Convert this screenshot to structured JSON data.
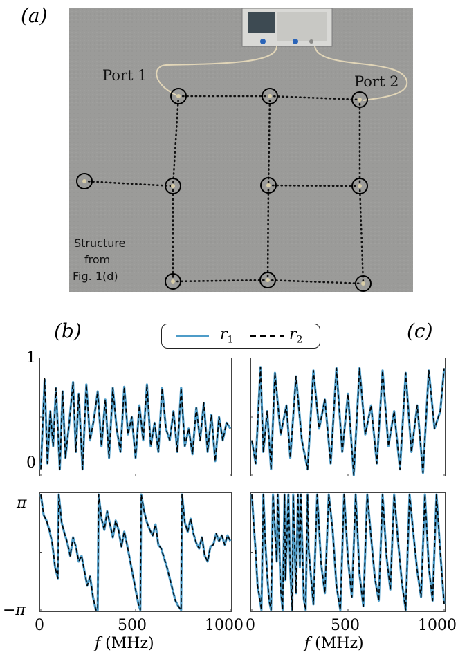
{
  "figure": {
    "panel_labels": {
      "a": "(a)",
      "b": "(b)",
      "c": "(c)"
    },
    "photo": {
      "port1_label": "Port 1",
      "port2_label": "Port 2",
      "structure_note": [
        "Structure",
        "from",
        "Fig. 1(d)"
      ]
    },
    "legend": {
      "r1": "r",
      "r1_sub": "1",
      "r2": "r",
      "r2_sub": "2"
    },
    "y_ticks_top": {
      "max": "1",
      "min": "0"
    },
    "y_ticks_bottom": {
      "max": "π",
      "min": "−π"
    },
    "x_ticks_b": [
      "0",
      "500",
      "1000"
    ],
    "x_ticks_c": [
      "0",
      "500",
      "1000"
    ],
    "xlabel_var": "f",
    "xlabel_unit": "(MHz)",
    "colors": {
      "r1": "#4e9cc8",
      "r2": "#000000",
      "photo_floor": "#9c9c9a",
      "axis": "#444444"
    }
  },
  "chart_data": [
    {
      "panel": "b-top",
      "type": "line",
      "quantity": "amplitude",
      "xlim": [
        0,
        1000
      ],
      "ylim": [
        0,
        1
      ],
      "series": [
        {
          "name": "r1",
          "x": [
            0,
            20,
            35,
            50,
            65,
            80,
            100,
            115,
            130,
            150,
            170,
            185,
            200,
            220,
            240,
            260,
            280,
            300,
            320,
            340,
            360,
            380,
            400,
            420,
            440,
            460,
            480,
            500,
            520,
            540,
            560,
            580,
            600,
            620,
            640,
            660,
            680,
            700,
            720,
            740,
            760,
            780,
            800,
            820,
            840,
            860,
            880,
            900,
            920,
            940,
            960,
            980,
            1000
          ],
          "y": [
            0.05,
            0.82,
            0.1,
            0.55,
            0.25,
            0.75,
            0.05,
            0.72,
            0.15,
            0.45,
            0.8,
            0.2,
            0.7,
            0.05,
            0.78,
            0.3,
            0.48,
            0.72,
            0.25,
            0.65,
            0.15,
            0.75,
            0.4,
            0.2,
            0.76,
            0.35,
            0.5,
            0.15,
            0.6,
            0.3,
            0.78,
            0.25,
            0.45,
            0.2,
            0.75,
            0.4,
            0.3,
            0.55,
            0.2,
            0.75,
            0.25,
            0.4,
            0.18,
            0.58,
            0.3,
            0.62,
            0.2,
            0.52,
            0.12,
            0.5,
            0.3,
            0.45,
            0.4
          ]
        },
        {
          "name": "r2",
          "x": [
            0,
            20,
            35,
            50,
            65,
            80,
            100,
            115,
            130,
            150,
            170,
            185,
            200,
            220,
            240,
            260,
            280,
            300,
            320,
            340,
            360,
            380,
            400,
            420,
            440,
            460,
            480,
            500,
            520,
            540,
            560,
            580,
            600,
            620,
            640,
            660,
            680,
            700,
            720,
            740,
            760,
            780,
            800,
            820,
            840,
            860,
            880,
            900,
            920,
            940,
            960,
            980,
            1000
          ],
          "y": [
            0.05,
            0.83,
            0.1,
            0.55,
            0.25,
            0.75,
            0.05,
            0.72,
            0.15,
            0.45,
            0.8,
            0.2,
            0.7,
            0.05,
            0.78,
            0.3,
            0.48,
            0.72,
            0.25,
            0.65,
            0.15,
            0.75,
            0.4,
            0.2,
            0.76,
            0.35,
            0.5,
            0.15,
            0.6,
            0.3,
            0.78,
            0.25,
            0.45,
            0.2,
            0.75,
            0.4,
            0.3,
            0.55,
            0.2,
            0.75,
            0.25,
            0.4,
            0.18,
            0.58,
            0.3,
            0.62,
            0.2,
            0.52,
            0.12,
            0.5,
            0.3,
            0.45,
            0.4
          ]
        }
      ]
    },
    {
      "panel": "c-top",
      "type": "line",
      "quantity": "amplitude",
      "xlim": [
        0,
        1000
      ],
      "ylim": [
        0,
        1
      ],
      "series": [
        {
          "name": "r1",
          "x": [
            0,
            20,
            45,
            60,
            80,
            100,
            120,
            150,
            180,
            200,
            230,
            260,
            290,
            320,
            350,
            380,
            410,
            440,
            470,
            500,
            530,
            560,
            590,
            620,
            650,
            680,
            710,
            740,
            770,
            800,
            830,
            860,
            890,
            920,
            950,
            980,
            1000
          ],
          "y": [
            0.3,
            0.1,
            0.93,
            0.2,
            0.55,
            0.05,
            0.88,
            0.35,
            0.6,
            0.15,
            0.85,
            0.3,
            0.05,
            0.9,
            0.4,
            0.65,
            0.1,
            0.92,
            0.2,
            0.7,
            0.0,
            0.92,
            0.35,
            0.6,
            0.1,
            0.9,
            0.25,
            0.55,
            0.05,
            0.88,
            0.2,
            0.6,
            0.02,
            0.9,
            0.4,
            0.55,
            0.92
          ]
        },
        {
          "name": "r2",
          "x": [
            0,
            20,
            45,
            60,
            80,
            100,
            120,
            150,
            180,
            200,
            230,
            260,
            290,
            320,
            350,
            380,
            410,
            440,
            470,
            500,
            530,
            560,
            590,
            620,
            650,
            680,
            710,
            740,
            770,
            800,
            830,
            860,
            890,
            920,
            950,
            980,
            1000
          ],
          "y": [
            0.3,
            0.1,
            0.93,
            0.2,
            0.55,
            0.05,
            0.88,
            0.35,
            0.6,
            0.15,
            0.85,
            0.3,
            0.05,
            0.9,
            0.4,
            0.65,
            0.1,
            0.92,
            0.2,
            0.7,
            0.0,
            0.92,
            0.35,
            0.6,
            0.1,
            0.9,
            0.25,
            0.55,
            0.05,
            0.88,
            0.2,
            0.6,
            0.02,
            0.9,
            0.4,
            0.55,
            0.92
          ]
        }
      ]
    },
    {
      "panel": "b-bottom",
      "type": "line",
      "quantity": "phase",
      "xlim": [
        0,
        1000
      ],
      "ylim": [
        -3.1416,
        3.1416
      ],
      "series": [
        {
          "name": "r1",
          "x": [
            0,
            15,
            30,
            45,
            60,
            75,
            90,
            95,
            110,
            125,
            140,
            155,
            170,
            185,
            200,
            215,
            230,
            245,
            260,
            275,
            290,
            300,
            305,
            320,
            335,
            350,
            365,
            380,
            395,
            410,
            425,
            440,
            455,
            470,
            485,
            500,
            515,
            525,
            530,
            545,
            560,
            575,
            590,
            605,
            620,
            635,
            650,
            665,
            680,
            695,
            710,
            725,
            740,
            745,
            760,
            775,
            790,
            805,
            820,
            835,
            850,
            865,
            880,
            895,
            910,
            925,
            940,
            955,
            970,
            985,
            1000
          ],
          "y": [
            3.1,
            2.0,
            1.7,
            1.2,
            0.5,
            -0.8,
            -1.4,
            3.1,
            1.6,
            1.0,
            0.5,
            -0.2,
            0.8,
            0.3,
            -0.5,
            -0.2,
            -1.0,
            -1.8,
            -1.3,
            -2.4,
            -3.1,
            -3.1,
            3.1,
            1.8,
            1.2,
            2.2,
            1.5,
            0.8,
            1.7,
            1.2,
            0.3,
            1.1,
            0.4,
            -0.4,
            -1.2,
            -2.0,
            -2.8,
            -3.1,
            3.1,
            2.2,
            1.6,
            1.2,
            0.9,
            1.5,
            0.4,
            0.2,
            -0.3,
            -0.8,
            -1.4,
            -2.0,
            -2.6,
            -2.9,
            -3.1,
            3.1,
            1.6,
            1.1,
            1.8,
            1.0,
            0.5,
            0.2,
            0.8,
            -0.2,
            -0.5,
            0.3,
            0.4,
            1.0,
            0.6,
            0.9,
            0.4,
            0.9,
            0.6
          ]
        },
        {
          "name": "r2",
          "x": [
            0,
            15,
            30,
            45,
            60,
            75,
            90,
            95,
            110,
            125,
            140,
            155,
            170,
            185,
            200,
            215,
            230,
            245,
            260,
            275,
            290,
            300,
            305,
            320,
            335,
            350,
            365,
            380,
            395,
            410,
            425,
            440,
            455,
            470,
            485,
            500,
            515,
            525,
            530,
            545,
            560,
            575,
            590,
            605,
            620,
            635,
            650,
            665,
            680,
            695,
            710,
            725,
            740,
            745,
            760,
            775,
            790,
            805,
            820,
            835,
            850,
            865,
            880,
            895,
            910,
            925,
            940,
            955,
            970,
            985,
            1000
          ],
          "y": [
            3.1,
            2.0,
            1.7,
            1.2,
            0.5,
            -0.8,
            -1.4,
            3.1,
            1.6,
            1.0,
            0.5,
            -0.2,
            0.8,
            0.3,
            -0.5,
            -0.2,
            -1.0,
            -1.8,
            -1.3,
            -2.4,
            -3.1,
            -3.1,
            3.1,
            1.8,
            1.2,
            2.2,
            1.5,
            0.8,
            1.7,
            1.2,
            0.3,
            1.1,
            0.4,
            -0.4,
            -1.2,
            -2.0,
            -2.8,
            -3.1,
            3.1,
            2.2,
            1.6,
            1.2,
            0.9,
            1.5,
            0.4,
            0.2,
            -0.3,
            -0.8,
            -1.4,
            -2.0,
            -2.6,
            -2.9,
            -3.1,
            3.1,
            1.6,
            1.1,
            1.8,
            1.0,
            0.5,
            0.2,
            0.8,
            -0.2,
            -0.5,
            0.3,
            0.4,
            1.0,
            0.6,
            0.9,
            0.4,
            0.9,
            0.6
          ]
        }
      ]
    },
    {
      "panel": "c-bottom",
      "type": "line",
      "quantity": "phase",
      "xlim": [
        0,
        1000
      ],
      "ylim": [
        -3.1416,
        3.1416
      ],
      "series": [
        {
          "name": "r1",
          "x": [
            0,
            10,
            20,
            30,
            40,
            50,
            60,
            70,
            80,
            90,
            100,
            110,
            130,
            135,
            150,
            160,
            170,
            175,
            190,
            200,
            210,
            215,
            230,
            240,
            250,
            255,
            270,
            280,
            290,
            295,
            310,
            320,
            340,
            360,
            380,
            400,
            420,
            440,
            460,
            480,
            500,
            520,
            540,
            560,
            580,
            600,
            620,
            640,
            660,
            680,
            700,
            720,
            740,
            760,
            780,
            800,
            820,
            840,
            860,
            880,
            900,
            920,
            940,
            960,
            980,
            1000
          ],
          "y": [
            3.1,
            1.5,
            0.0,
            -1.8,
            -2.4,
            -3.1,
            3.1,
            0.5,
            -1.2,
            -2.6,
            -3.1,
            3.1,
            -0.5,
            3.1,
            -2.0,
            -3.1,
            3.1,
            -1.5,
            3.1,
            -1.0,
            -3.1,
            3.1,
            -2.2,
            3.1,
            -0.8,
            3.1,
            -2.5,
            -3.1,
            3.1,
            0.2,
            -1.6,
            -2.8,
            3.1,
            -0.6,
            -2.2,
            3.1,
            1.2,
            -1.8,
            -3.1,
            3.1,
            -0.4,
            -2.4,
            3.1,
            -1.2,
            -2.9,
            3.1,
            0.8,
            -1.4,
            -2.6,
            3.1,
            -0.2,
            -2.0,
            3.1,
            0.6,
            -1.6,
            -3.1,
            3.1,
            1.0,
            -1.0,
            -2.4,
            3.1,
            -0.8,
            -2.6,
            3.1,
            0.0,
            -2.8
          ]
        },
        {
          "name": "r2",
          "x": [
            0,
            10,
            20,
            30,
            40,
            50,
            60,
            70,
            80,
            90,
            100,
            110,
            130,
            135,
            150,
            160,
            170,
            175,
            190,
            200,
            210,
            215,
            230,
            240,
            250,
            255,
            270,
            280,
            290,
            295,
            310,
            320,
            340,
            360,
            380,
            400,
            420,
            440,
            460,
            480,
            500,
            520,
            540,
            560,
            580,
            600,
            620,
            640,
            660,
            680,
            700,
            720,
            740,
            760,
            780,
            800,
            820,
            840,
            860,
            880,
            900,
            920,
            940,
            960,
            980,
            1000
          ],
          "y": [
            3.1,
            1.5,
            0.0,
            -1.8,
            -2.4,
            -3.1,
            3.1,
            0.5,
            -1.2,
            -2.6,
            -3.1,
            3.1,
            -0.5,
            3.1,
            -2.0,
            -3.1,
            3.1,
            -1.5,
            3.1,
            -1.0,
            -3.1,
            3.1,
            -2.2,
            3.1,
            -0.8,
            3.1,
            -2.5,
            -3.1,
            3.1,
            0.2,
            -1.6,
            -2.8,
            3.1,
            -0.6,
            -2.2,
            3.1,
            1.2,
            -1.8,
            -3.1,
            3.1,
            -0.4,
            -2.4,
            3.1,
            -1.2,
            -2.9,
            3.1,
            0.8,
            -1.4,
            -2.6,
            3.1,
            -0.2,
            -2.0,
            3.1,
            0.6,
            -1.6,
            -3.1,
            3.1,
            1.0,
            -1.0,
            -2.4,
            3.1,
            -0.8,
            -2.6,
            3.1,
            0.0,
            -2.8
          ]
        }
      ]
    }
  ]
}
